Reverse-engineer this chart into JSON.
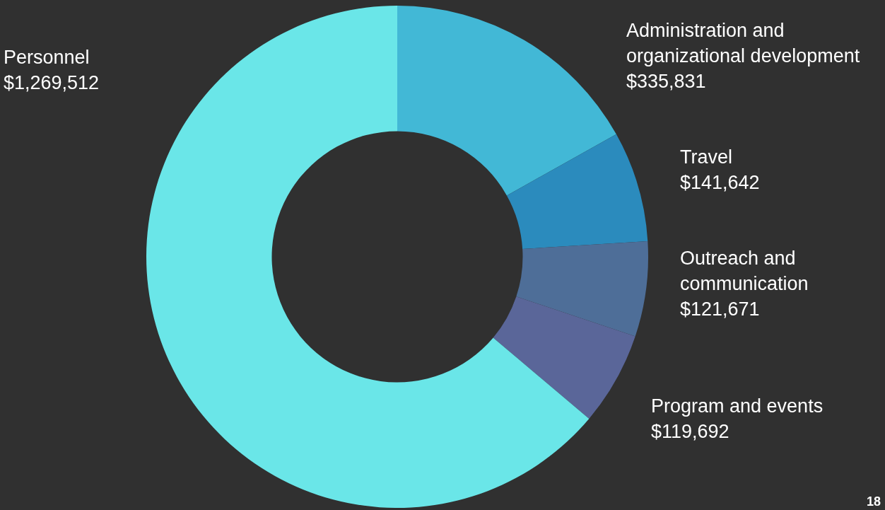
{
  "chart_data": {
    "type": "donut",
    "categories": [
      "Administration and organizational development",
      "Travel",
      "Outreach and communication",
      "Program and events",
      "Personnel"
    ],
    "values": [
      335831,
      141642,
      121671,
      119692,
      1269512
    ],
    "colors": [
      "#42b8d6",
      "#2b8bbd",
      "#4e6e98",
      "#5a6699",
      "#6ae6e8"
    ],
    "value_labels": [
      "$335,831",
      "$141,642",
      "$121,671",
      "$119,692",
      "$1,269,512"
    ],
    "annotations": [
      "18"
    ]
  }
}
